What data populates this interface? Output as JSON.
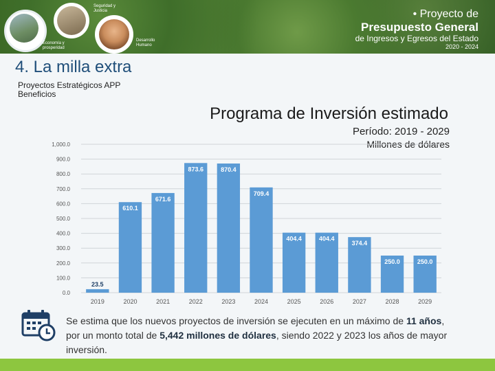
{
  "header": {
    "caption_left_top": "Seguridad y Justicia",
    "caption_left_bottom": "Economía y prosperidad",
    "caption_right": "Desarrollo Humano",
    "brand_line1": "• Proyecto de",
    "brand_line2": "Presupuesto General",
    "brand_line3": "de Ingresos y Egresos del Estado",
    "brand_line4": "2020 - 2024"
  },
  "slide": {
    "title": "4. La milla extra",
    "subtitle_line1": "Proyectos Estratégicos APP",
    "subtitle_line2": "Beneficios"
  },
  "chart_header": {
    "title": "Programa de Inversión estimado",
    "period": "Período: 2019 - 2029",
    "units": "Millones de dólares"
  },
  "chart_data": {
    "type": "bar",
    "title": "Programa de Inversión estimado",
    "categories": [
      "2019",
      "2020",
      "2021",
      "2022",
      "2023",
      "2024",
      "2025",
      "2026",
      "2027",
      "2028",
      "2029"
    ],
    "values": [
      23.5,
      610.1,
      671.6,
      873.6,
      870.4,
      709.4,
      404.4,
      404.4,
      374.4,
      250.0,
      250.0
    ],
    "labels": [
      "23.5",
      "610.1",
      "671.6",
      "873.6",
      "870.4",
      "709.4",
      "404.4",
      "404.4",
      "374.4",
      "250.0",
      "250.0"
    ],
    "ylim": [
      0,
      1000
    ],
    "yticks": [
      "0.0",
      "100.0",
      "200.0",
      "300.0",
      "400.0",
      "500.0",
      "600.0",
      "700.0",
      "800.0",
      "900.0",
      "1,000.0"
    ],
    "xlabel": "",
    "ylabel": "Millones de dólares",
    "grid": true,
    "bar_color": "#5b9bd5"
  },
  "footnote": {
    "part1": "Se estima que los nuevos proyectos de inversión se ejecuten en un máximo de ",
    "bold1": "11 años",
    "part2": ", por un monto total de ",
    "bold2": "5,442 millones de dólares",
    "part3": ", siendo 2022 y 2023 los años de mayor inversión."
  },
  "icons": {
    "calendar": "calendar-clock-icon"
  }
}
